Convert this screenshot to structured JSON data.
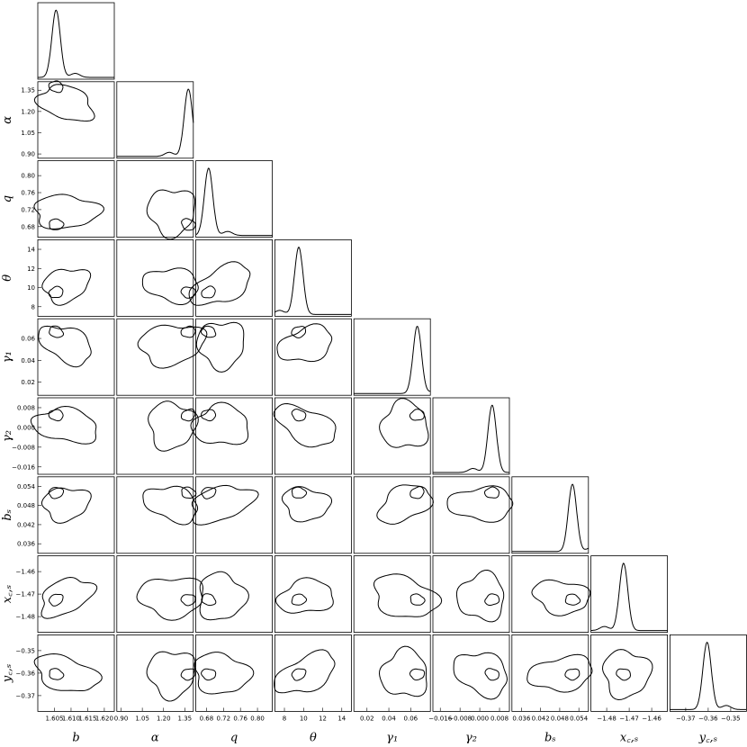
{
  "chart_data": {
    "type": "corner",
    "title": "",
    "parameters": [
      {
        "key": "b",
        "label": "b",
        "range": [
          1.6,
          1.623
        ],
        "ticks": [
          1.605,
          1.61,
          1.615,
          1.62
        ],
        "tick_labels": [
          "1.605",
          "1.610",
          "1.615",
          "1.620"
        ],
        "peak": 1.6055
      },
      {
        "key": "alpha",
        "label": "α",
        "range": [
          0.87,
          1.41
        ],
        "ticks": [
          0.9,
          1.05,
          1.2,
          1.35
        ],
        "tick_labels": [
          "0.90",
          "1.05",
          "1.20",
          "1.35"
        ],
        "peak": 1.375
      },
      {
        "key": "q",
        "label": "q",
        "range": [
          0.655,
          0.835
        ],
        "ticks": [
          0.68,
          0.72,
          0.76,
          0.8
        ],
        "tick_labels": [
          "0.68",
          "0.72",
          "0.76",
          "0.80"
        ],
        "peak": 0.685
      },
      {
        "key": "theta",
        "label": "θ",
        "range": [
          7,
          15
        ],
        "ticks": [
          8,
          10,
          12,
          14
        ],
        "tick_labels": [
          "8",
          "10",
          "12",
          "14"
        ],
        "peak": 9.5
      },
      {
        "key": "gamma1",
        "label": "γ₁",
        "range": [
          0.008,
          0.078
        ],
        "ticks": [
          0.02,
          0.04,
          0.06
        ],
        "tick_labels": [
          "0.02",
          "0.04",
          "0.06"
        ],
        "peak": 0.066
      },
      {
        "key": "gamma2",
        "label": "γ₂",
        "range": [
          -0.019,
          0.012
        ],
        "ticks": [
          -0.016,
          -0.008,
          0.0,
          0.008
        ],
        "tick_labels": [
          "−0.016",
          "−0.008",
          "0.000",
          "0.008"
        ],
        "peak": 0.005
      },
      {
        "key": "b_s",
        "label": "bₛ",
        "range": [
          0.033,
          0.057
        ],
        "ticks": [
          0.036,
          0.042,
          0.048,
          0.054
        ],
        "tick_labels": [
          "0.036",
          "0.042",
          "0.048",
          "0.054"
        ],
        "peak": 0.052
      },
      {
        "key": "x_cs",
        "label": "x꜀,ₛ",
        "range": [
          -1.487,
          -1.453
        ],
        "ticks": [
          -1.48,
          -1.47,
          -1.46
        ],
        "tick_labels": [
          "−1.48",
          "−1.47",
          "−1.46"
        ],
        "peak": -1.4725
      },
      {
        "key": "y_cs",
        "label": "y꜀,ₛ",
        "range": [
          -0.377,
          -0.343
        ],
        "ticks": [
          -0.37,
          -0.36,
          -0.35
        ],
        "tick_labels": [
          "−0.37",
          "−0.36",
          "−0.35"
        ],
        "peak": -0.3605
      }
    ],
    "left_labels": [
      "α",
      "q",
      "θ",
      "γ₂",
      "bₛ",
      "x꜀,ₛ",
      "y꜀,ₛ"
    ],
    "left_labels_rows": [
      1,
      2,
      3,
      5,
      6,
      7,
      8
    ],
    "gamma1_row_label": "γ₁",
    "left_ticks": {
      "1": {
        "ticks": [
          0.9,
          1.05,
          1.2,
          1.35
        ],
        "labels": [
          "0.90",
          "1.05",
          "1.20",
          "1.35"
        ]
      },
      "2": {
        "ticks": [
          0.68,
          0.72,
          0.76,
          0.8
        ],
        "labels": [
          "0.68",
          "0.72",
          "0.76",
          "0.80"
        ]
      },
      "3": {
        "ticks": [
          8,
          10,
          12,
          14
        ],
        "labels": [
          "8",
          "10",
          "12",
          "14"
        ]
      },
      "4": {
        "ticks": [
          0.02,
          0.04,
          0.06
        ],
        "labels": [
          "0.02",
          "0.04",
          "0.06"
        ]
      },
      "5": {
        "ticks": [
          -0.016,
          -0.008,
          0.0,
          0.008
        ],
        "labels": [
          "−0.016",
          "−0.008",
          "0.000",
          "0.008"
        ]
      },
      "6": {
        "ticks": [
          0.036,
          0.042,
          0.048,
          0.054
        ],
        "labels": [
          "0.036",
          "0.042",
          "0.048",
          "0.054"
        ]
      },
      "7": {
        "ticks": [
          -1.48,
          -1.47,
          -1.46
        ],
        "labels": [
          "−1.48",
          "−1.47",
          "−1.46"
        ]
      },
      "8": {
        "ticks": [
          -0.37,
          -0.36,
          -0.35
        ],
        "labels": [
          "−0.37",
          "−0.36",
          "−0.35"
        ]
      }
    },
    "diagonal_panels": "1D marginal posterior density for each parameter",
    "off_diagonal_panels": "2D joint posterior contours (two levels)",
    "grid": false
  }
}
